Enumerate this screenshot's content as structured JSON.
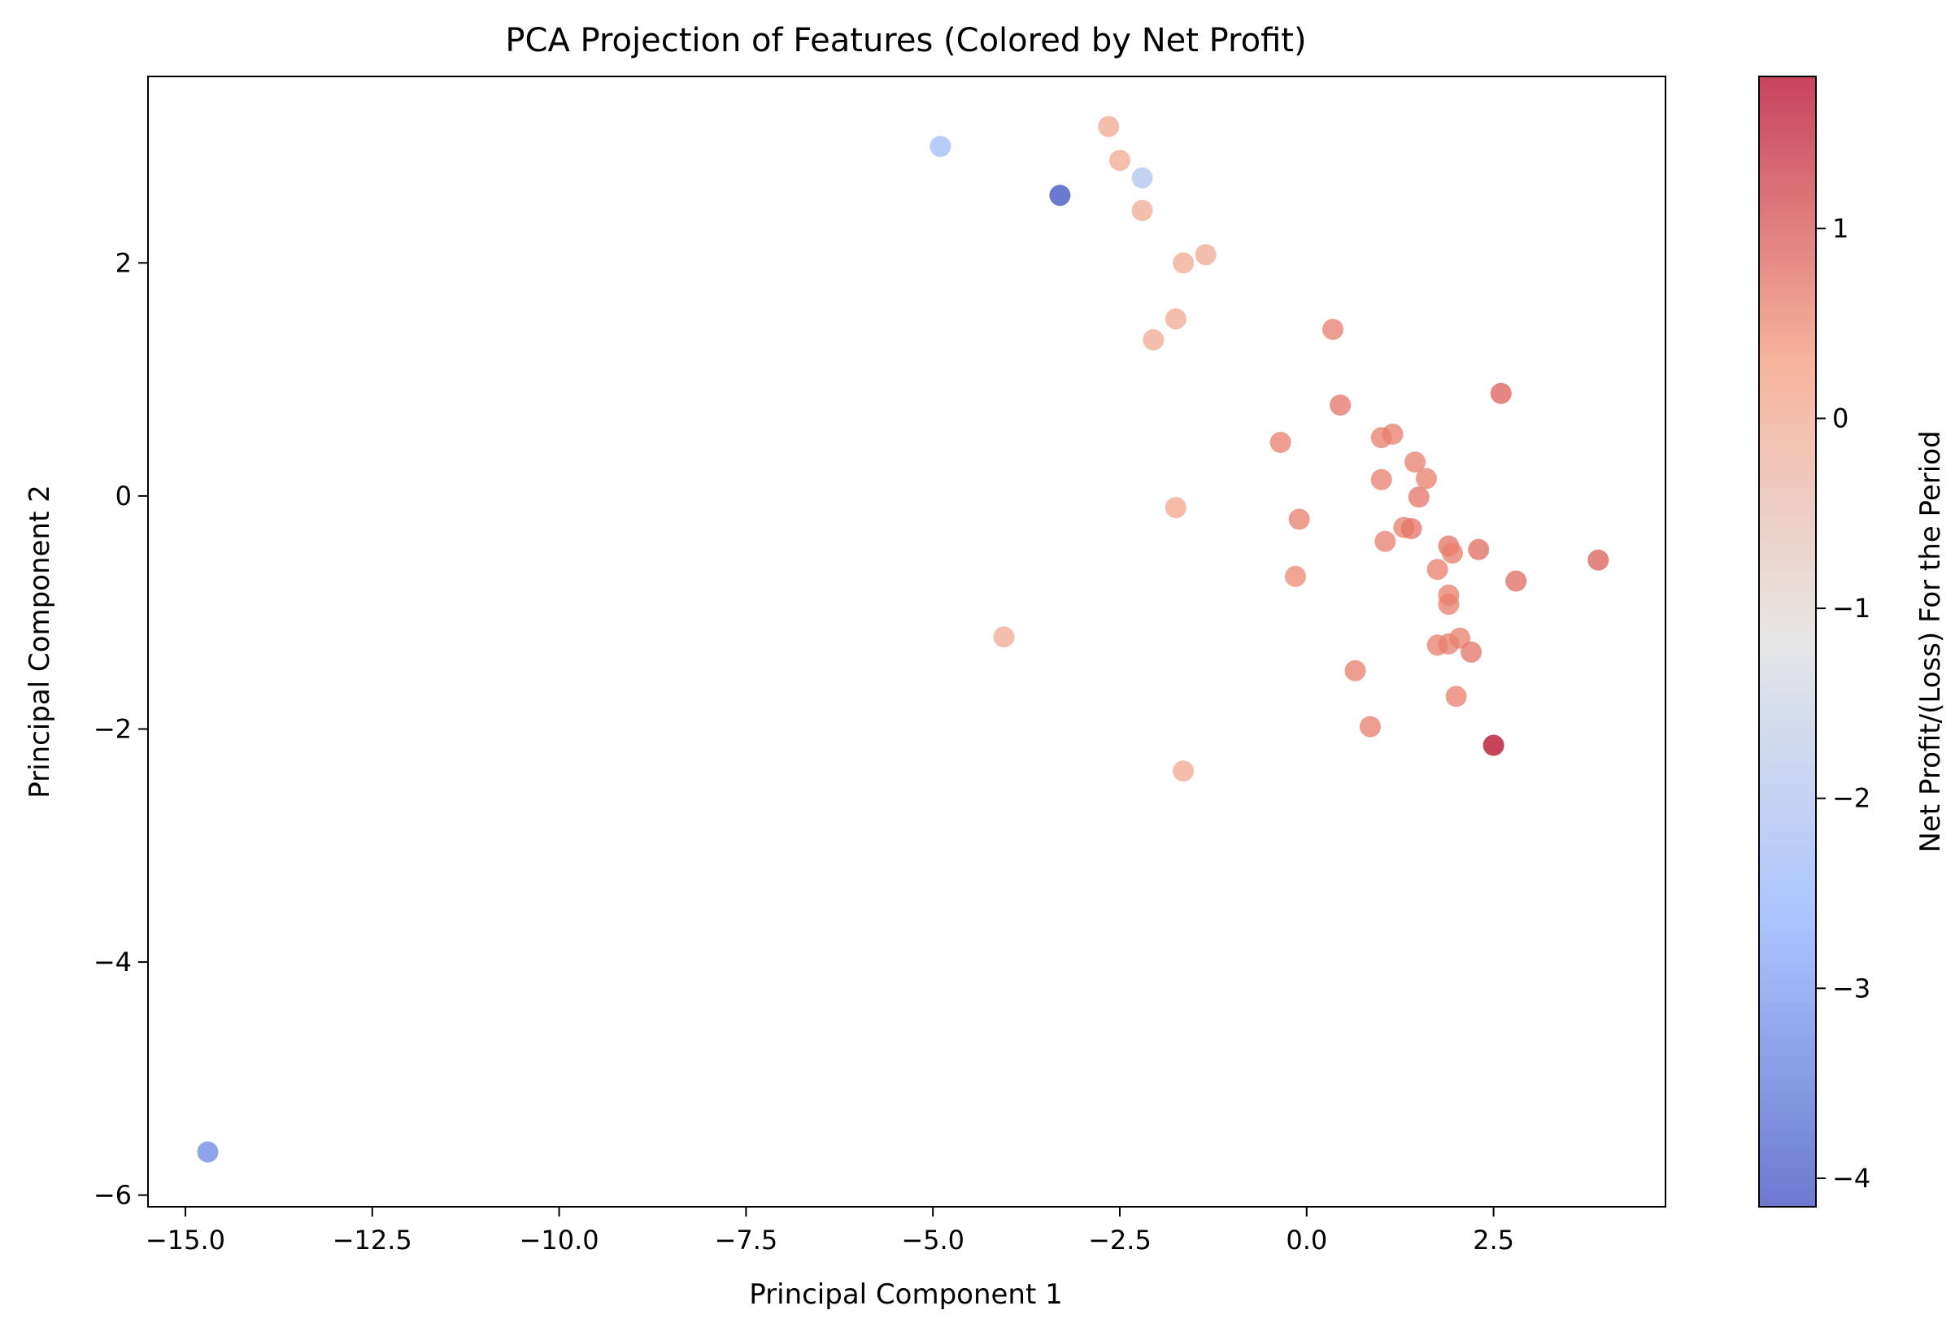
{
  "chart_data": {
    "type": "scatter",
    "title": "PCA Projection of Features (Colored by Net Profit)",
    "xlabel": "Principal Component 1",
    "ylabel": "Principal Component 2",
    "xlim": [
      -15.5,
      4.8
    ],
    "ylim": [
      -6.1,
      3.6
    ],
    "xticks": [
      -15.0,
      -12.5,
      -10.0,
      -7.5,
      -5.0,
      -2.5,
      0.0,
      2.5
    ],
    "xtick_labels": [
      "−15.0",
      "−12.5",
      "−10.0",
      "−7.5",
      "−5.0",
      "−2.5",
      "0.0",
      "2.5"
    ],
    "yticks": [
      -6,
      -4,
      -2,
      0,
      2
    ],
    "ytick_labels": [
      "−6",
      "−4",
      "−2",
      "0",
      "2"
    ],
    "grid": false,
    "marker_alpha": 0.75,
    "colorbar": {
      "label": "Net Profit/(Loss) For the Period",
      "colormap": "coolwarm",
      "range": [
        -4.15,
        1.8
      ],
      "ticks": [
        -4,
        -3,
        -2,
        -1,
        0,
        1
      ],
      "tick_labels": [
        "−4",
        "−3",
        "−2",
        "−1",
        "0",
        "1"
      ]
    },
    "points": [
      {
        "x": -14.7,
        "y": -5.63,
        "c": -3.3
      },
      {
        "x": -4.9,
        "y": 3.0,
        "c": -2.3
      },
      {
        "x": -3.3,
        "y": 2.58,
        "c": -4.15
      },
      {
        "x": -2.65,
        "y": 3.17,
        "c": 0.0
      },
      {
        "x": -2.5,
        "y": 2.88,
        "c": 0.0
      },
      {
        "x": -2.2,
        "y": 2.73,
        "c": -2.0
      },
      {
        "x": -2.2,
        "y": 2.45,
        "c": 0.0
      },
      {
        "x": -1.65,
        "y": 2.0,
        "c": 0.0
      },
      {
        "x": -1.35,
        "y": 2.07,
        "c": 0.0
      },
      {
        "x": -1.75,
        "y": 1.52,
        "c": 0.0
      },
      {
        "x": -2.05,
        "y": 1.34,
        "c": 0.0
      },
      {
        "x": -1.75,
        "y": -0.1,
        "c": 0.1
      },
      {
        "x": -4.05,
        "y": -1.21,
        "c": 0.0
      },
      {
        "x": -1.65,
        "y": -2.36,
        "c": 0.0
      },
      {
        "x": 0.35,
        "y": 1.43,
        "c": 0.6
      },
      {
        "x": 0.45,
        "y": 0.78,
        "c": 0.7
      },
      {
        "x": -0.35,
        "y": 0.46,
        "c": 0.6
      },
      {
        "x": 1.0,
        "y": 0.5,
        "c": 0.6
      },
      {
        "x": 1.15,
        "y": 0.53,
        "c": 0.6
      },
      {
        "x": 1.45,
        "y": 0.29,
        "c": 0.6
      },
      {
        "x": 1.0,
        "y": 0.14,
        "c": 0.6
      },
      {
        "x": 1.6,
        "y": 0.15,
        "c": 0.6
      },
      {
        "x": 1.5,
        "y": -0.01,
        "c": 0.7
      },
      {
        "x": -0.1,
        "y": -0.2,
        "c": 0.6
      },
      {
        "x": 1.3,
        "y": -0.27,
        "c": 0.6
      },
      {
        "x": 1.4,
        "y": -0.28,
        "c": 0.7
      },
      {
        "x": 1.05,
        "y": -0.39,
        "c": 0.6
      },
      {
        "x": 1.9,
        "y": -0.43,
        "c": 0.7
      },
      {
        "x": 1.95,
        "y": -0.49,
        "c": 0.6
      },
      {
        "x": 2.3,
        "y": -0.46,
        "c": 0.8
      },
      {
        "x": 1.75,
        "y": -0.63,
        "c": 0.6
      },
      {
        "x": -0.15,
        "y": -0.69,
        "c": 0.5
      },
      {
        "x": 1.9,
        "y": -0.85,
        "c": 0.6
      },
      {
        "x": 1.9,
        "y": -0.93,
        "c": 0.6
      },
      {
        "x": 2.8,
        "y": -0.73,
        "c": 0.8
      },
      {
        "x": 3.9,
        "y": -0.55,
        "c": 0.9
      },
      {
        "x": 2.6,
        "y": 0.88,
        "c": 0.9
      },
      {
        "x": 1.75,
        "y": -1.28,
        "c": 0.6
      },
      {
        "x": 1.9,
        "y": -1.27,
        "c": 0.6
      },
      {
        "x": 2.05,
        "y": -1.22,
        "c": 0.6
      },
      {
        "x": 2.2,
        "y": -1.34,
        "c": 0.7
      },
      {
        "x": 0.65,
        "y": -1.5,
        "c": 0.6
      },
      {
        "x": 2.0,
        "y": -1.72,
        "c": 0.6
      },
      {
        "x": 0.85,
        "y": -1.98,
        "c": 0.6
      },
      {
        "x": 2.5,
        "y": -2.14,
        "c": 1.8
      }
    ]
  }
}
